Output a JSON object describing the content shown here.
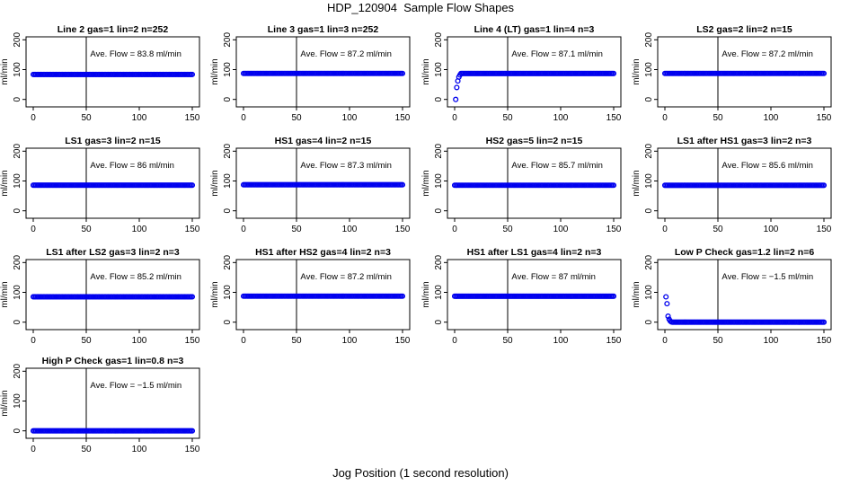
{
  "title": "HDP_120904  Sample Flow Shapes",
  "x_caption": "Jog Position (1 second resolution)",
  "colors": {
    "points": "#0000ee",
    "axes": "#000000"
  },
  "chart_data": [
    {
      "type": "scatter",
      "title": "Line 2 gas=1 lin=2 n=252",
      "ylabel": "ml/min",
      "annotation": "Ave. Flow =  83.8  ml/min",
      "xlim": [
        0,
        150
      ],
      "ylim": [
        -25,
        210
      ],
      "xticks": [
        0,
        50,
        100,
        150
      ],
      "yticks": [
        0,
        100,
        200
      ],
      "vline": 50,
      "series": [
        {
          "x": [
            0,
            150
          ],
          "y": [
            83.8,
            83.8
          ],
          "kind": "constant"
        }
      ]
    },
    {
      "type": "scatter",
      "title": "Line 3 gas=1 lin=3 n=252",
      "ylabel": "ml/min",
      "annotation": "Ave. Flow =  87.2  ml/min",
      "xlim": [
        0,
        150
      ],
      "ylim": [
        -25,
        210
      ],
      "xticks": [
        0,
        50,
        100,
        150
      ],
      "yticks": [
        0,
        100,
        200
      ],
      "vline": 50,
      "series": [
        {
          "x": [
            0,
            150
          ],
          "y": [
            87.2,
            87.2
          ],
          "kind": "constant"
        }
      ]
    },
    {
      "type": "scatter",
      "title": "Line 4 (LT) gas=1 lin=4 n=3",
      "ylabel": "ml/min",
      "annotation": "Ave. Flow =  87.1  ml/min",
      "xlim": [
        0,
        150
      ],
      "ylim": [
        -25,
        210
      ],
      "xticks": [
        0,
        50,
        100,
        150
      ],
      "yticks": [
        0,
        100,
        200
      ],
      "vline": 50,
      "series": [
        {
          "x": [
            1,
            2,
            3,
            4,
            5,
            6,
            150
          ],
          "y": [
            0,
            40,
            62,
            75,
            82,
            86,
            87.1
          ],
          "kind": "ramp"
        }
      ]
    },
    {
      "type": "scatter",
      "title": "LS2 gas=2 lin=2 n=15",
      "ylabel": "ml/min",
      "annotation": "Ave. Flow =  87.2  ml/min",
      "xlim": [
        0,
        150
      ],
      "ylim": [
        -25,
        210
      ],
      "xticks": [
        0,
        50,
        100,
        150
      ],
      "yticks": [
        0,
        100,
        200
      ],
      "vline": 50,
      "series": [
        {
          "x": [
            0,
            150
          ],
          "y": [
            87.2,
            87.2
          ],
          "kind": "constant"
        }
      ]
    },
    {
      "type": "scatter",
      "title": "LS1 gas=3 lin=2 n=15",
      "ylabel": "ml/min",
      "annotation": "Ave. Flow =  86  ml/min",
      "xlim": [
        0,
        150
      ],
      "ylim": [
        -25,
        210
      ],
      "xticks": [
        0,
        50,
        100,
        150
      ],
      "yticks": [
        0,
        100,
        200
      ],
      "vline": 50,
      "series": [
        {
          "x": [
            0,
            150
          ],
          "y": [
            86,
            86
          ],
          "kind": "constant"
        }
      ]
    },
    {
      "type": "scatter",
      "title": "HS1 gas=4 lin=2 n=15",
      "ylabel": "ml/min",
      "annotation": "Ave. Flow =  87.3  ml/min",
      "xlim": [
        0,
        150
      ],
      "ylim": [
        -25,
        210
      ],
      "xticks": [
        0,
        50,
        100,
        150
      ],
      "yticks": [
        0,
        100,
        200
      ],
      "vline": 50,
      "series": [
        {
          "x": [
            0,
            150
          ],
          "y": [
            87.3,
            87.3
          ],
          "kind": "constant"
        }
      ]
    },
    {
      "type": "scatter",
      "title": "HS2 gas=5 lin=2 n=15",
      "ylabel": "ml/min",
      "annotation": "Ave. Flow =  85.7  ml/min",
      "xlim": [
        0,
        150
      ],
      "ylim": [
        -25,
        210
      ],
      "xticks": [
        0,
        50,
        100,
        150
      ],
      "yticks": [
        0,
        100,
        200
      ],
      "vline": 50,
      "series": [
        {
          "x": [
            0,
            150
          ],
          "y": [
            85.7,
            85.7
          ],
          "kind": "constant"
        }
      ]
    },
    {
      "type": "scatter",
      "title": "LS1 after HS1 gas=3 lin=2 n=3",
      "ylabel": "ml/min",
      "annotation": "Ave. Flow =  85.6  ml/min",
      "xlim": [
        0,
        150
      ],
      "ylim": [
        -25,
        210
      ],
      "xticks": [
        0,
        50,
        100,
        150
      ],
      "yticks": [
        0,
        100,
        200
      ],
      "vline": 50,
      "series": [
        {
          "x": [
            0,
            150
          ],
          "y": [
            85.6,
            85.6
          ],
          "kind": "constant"
        }
      ]
    },
    {
      "type": "scatter",
      "title": "LS1 after LS2 gas=3 lin=2 n=3",
      "ylabel": "ml/min",
      "annotation": "Ave. Flow =  85.2  ml/min",
      "xlim": [
        0,
        150
      ],
      "ylim": [
        -25,
        210
      ],
      "xticks": [
        0,
        50,
        100,
        150
      ],
      "yticks": [
        0,
        100,
        200
      ],
      "vline": 50,
      "series": [
        {
          "x": [
            0,
            150
          ],
          "y": [
            85.2,
            85.2
          ],
          "kind": "constant"
        }
      ]
    },
    {
      "type": "scatter",
      "title": "HS1 after HS2 gas=4 lin=2 n=3",
      "ylabel": "ml/min",
      "annotation": "Ave. Flow =  87.2  ml/min",
      "xlim": [
        0,
        150
      ],
      "ylim": [
        -25,
        210
      ],
      "xticks": [
        0,
        50,
        100,
        150
      ],
      "yticks": [
        0,
        100,
        200
      ],
      "vline": 50,
      "series": [
        {
          "x": [
            0,
            150
          ],
          "y": [
            87.2,
            87.2
          ],
          "kind": "constant"
        }
      ]
    },
    {
      "type": "scatter",
      "title": "HS1 after LS1 gas=4 lin=2 n=3",
      "ylabel": "ml/min",
      "annotation": "Ave. Flow =  87  ml/min",
      "xlim": [
        0,
        150
      ],
      "ylim": [
        -25,
        210
      ],
      "xticks": [
        0,
        50,
        100,
        150
      ],
      "yticks": [
        0,
        100,
        200
      ],
      "vline": 50,
      "series": [
        {
          "x": [
            0,
            150
          ],
          "y": [
            87,
            87
          ],
          "kind": "constant"
        }
      ]
    },
    {
      "type": "scatter",
      "title": "Low P Check gas=1.2 lin=2 n=6",
      "ylabel": "ml/min",
      "annotation": "Ave. Flow =  −1.5  ml/min",
      "xlim": [
        0,
        150
      ],
      "ylim": [
        -25,
        210
      ],
      "xticks": [
        0,
        50,
        100,
        150
      ],
      "yticks": [
        0,
        100,
        200
      ],
      "vline": 50,
      "series": [
        {
          "x": [
            1,
            2,
            3,
            4,
            5,
            6,
            7,
            150
          ],
          "y": [
            85,
            62,
            20,
            10,
            4,
            1,
            0,
            0
          ],
          "kind": "decay"
        }
      ]
    },
    {
      "type": "scatter",
      "title": "High P Check gas=1 lin=0.8 n=3",
      "ylabel": "ml/min",
      "annotation": "Ave. Flow =  −1.5  ml/min",
      "xlim": [
        0,
        150
      ],
      "ylim": [
        -25,
        210
      ],
      "xticks": [
        0,
        50,
        100,
        150
      ],
      "yticks": [
        0,
        100,
        200
      ],
      "vline": 50,
      "series": [
        {
          "x": [
            0,
            150
          ],
          "y": [
            0,
            0
          ],
          "kind": "constant"
        }
      ]
    }
  ]
}
